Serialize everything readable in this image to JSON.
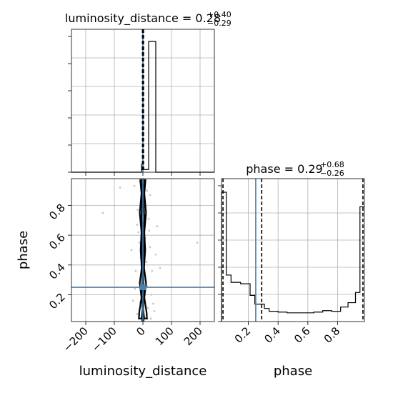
{
  "chart_data": {
    "type": "corner",
    "parameters": [
      "luminosity_distance",
      "phase"
    ],
    "titles": {
      "luminosity_distance": {
        "prefix": "luminosity_distance = ",
        "value": "0.28",
        "plus": "+0.40",
        "minus": "−0.29"
      },
      "phase": {
        "prefix": "phase = ",
        "value": "0.29",
        "plus": "+0.68",
        "minus": "−0.26"
      }
    },
    "axis_labels": {
      "x_bottom_left": "luminosity_distance",
      "x_bottom_right": "phase",
      "y_left": "phase"
    },
    "luminosity_distance_axis": {
      "range": [
        -250,
        250
      ],
      "ticks": [
        -200,
        -100,
        0,
        100,
        200
      ],
      "tick_labels": [
        "−200",
        "−100",
        "0",
        "100",
        "200"
      ]
    },
    "phase_axis": {
      "range": [
        0.02,
        0.98
      ],
      "ticks": [
        0.2,
        0.4,
        0.6,
        0.8
      ],
      "tick_labels": [
        "0.2",
        "0.4",
        "0.6",
        "0.8"
      ]
    },
    "truth": {
      "luminosity_distance": 0.0,
      "phase": 0.25,
      "color": "#4682b4"
    },
    "quantiles": {
      "luminosity_distance": [
        -0.01,
        0.28,
        0.68
      ],
      "phase": [
        0.03,
        0.29,
        0.97
      ]
    },
    "hist_luminosity_distance": {
      "bin_edges": [
        -250,
        -225,
        -200,
        -175,
        -150,
        -125,
        -100,
        -75,
        -50,
        -25,
        -5,
        0,
        20,
        45,
        70,
        95,
        120,
        145,
        170,
        195,
        220,
        250
      ],
      "counts": [
        0,
        0,
        0,
        0,
        0,
        0,
        0,
        0,
        0,
        0,
        0.06,
        0.02,
        0.98,
        0,
        0,
        0,
        0,
        0,
        0,
        0,
        0
      ]
    },
    "hist_phase": {
      "bin_edges": [
        0.02,
        0.052,
        0.084,
        0.148,
        0.212,
        0.244,
        0.276,
        0.308,
        0.34,
        0.4,
        0.46,
        0.52,
        0.58,
        0.64,
        0.7,
        0.76,
        0.82,
        0.87,
        0.92,
        0.95,
        0.98
      ],
      "counts": [
        0.89,
        0.32,
        0.27,
        0.26,
        0.18,
        0.12,
        0.12,
        0.09,
        0.07,
        0.065,
        0.06,
        0.06,
        0.06,
        0.065,
        0.075,
        0.07,
        0.1,
        0.13,
        0.2,
        0.79
      ]
    },
    "scatter_points": [
      [
        -140,
        0.75
      ],
      [
        -80,
        0.92
      ],
      [
        -30,
        0.93
      ],
      [
        -20,
        0.67
      ],
      [
        -25,
        0.36
      ],
      [
        -20,
        0.07
      ],
      [
        -10,
        0.15
      ],
      [
        -8,
        0.45
      ],
      [
        -12,
        0.55
      ],
      [
        -6,
        0.32
      ],
      [
        -4,
        0.83
      ],
      [
        -15,
        0.62
      ],
      [
        -3,
        0.12
      ],
      [
        -2,
        0.28
      ],
      [
        6,
        0.94
      ],
      [
        10,
        0.8
      ],
      [
        8,
        0.58
      ],
      [
        12,
        0.42
      ],
      [
        14,
        0.26
      ],
      [
        18,
        0.11
      ],
      [
        20,
        0.71
      ],
      [
        25,
        0.52
      ],
      [
        30,
        0.2
      ],
      [
        32,
        0.36
      ],
      [
        40,
        0.09
      ],
      [
        45,
        0.47
      ],
      [
        60,
        0.38
      ],
      [
        25,
        0.87
      ],
      [
        -35,
        0.16
      ],
      [
        -28,
        0.24
      ],
      [
        5,
        0.05
      ],
      [
        -5,
        0.04
      ],
      [
        15,
        0.04
      ],
      [
        22,
        0.63
      ],
      [
        -18,
        0.77
      ],
      [
        36,
        0.14
      ],
      [
        -40,
        0.5
      ],
      [
        50,
        0.66
      ],
      [
        28,
        0.04
      ],
      [
        -12,
        0.96
      ],
      [
        190,
        0.55
      ],
      [
        14,
        0.9
      ]
    ],
    "contours": [
      {
        "level": "inner",
        "left": [
          [
            -4,
            0.97
          ],
          [
            -2,
            0.85
          ],
          [
            -5,
            0.72
          ],
          [
            -2,
            0.6
          ],
          [
            -4,
            0.47
          ],
          [
            -1,
            0.35
          ],
          [
            -3,
            0.22
          ],
          [
            -1,
            0.1
          ],
          [
            -4,
            0.05
          ]
        ],
        "right": [
          [
            4,
            0.97
          ],
          [
            2,
            0.85
          ],
          [
            5,
            0.72
          ],
          [
            2,
            0.6
          ],
          [
            4,
            0.47
          ],
          [
            1,
            0.35
          ],
          [
            3,
            0.22
          ],
          [
            1,
            0.1
          ],
          [
            4,
            0.05
          ]
        ]
      },
      {
        "level": "outer",
        "left": [
          [
            -9,
            0.97
          ],
          [
            -5,
            0.88
          ],
          [
            -11,
            0.75
          ],
          [
            -5,
            0.62
          ],
          [
            -8,
            0.5
          ],
          [
            -4,
            0.38
          ],
          [
            -11,
            0.28
          ],
          [
            -5,
            0.18
          ],
          [
            -13,
            0.08
          ],
          [
            -14,
            0.04
          ]
        ],
        "right": [
          [
            9,
            0.97
          ],
          [
            5,
            0.88
          ],
          [
            11,
            0.75
          ],
          [
            5,
            0.62
          ],
          [
            8,
            0.5
          ],
          [
            4,
            0.38
          ],
          [
            11,
            0.28
          ],
          [
            5,
            0.18
          ],
          [
            13,
            0.08
          ],
          [
            14,
            0.04
          ]
        ]
      }
    ]
  }
}
